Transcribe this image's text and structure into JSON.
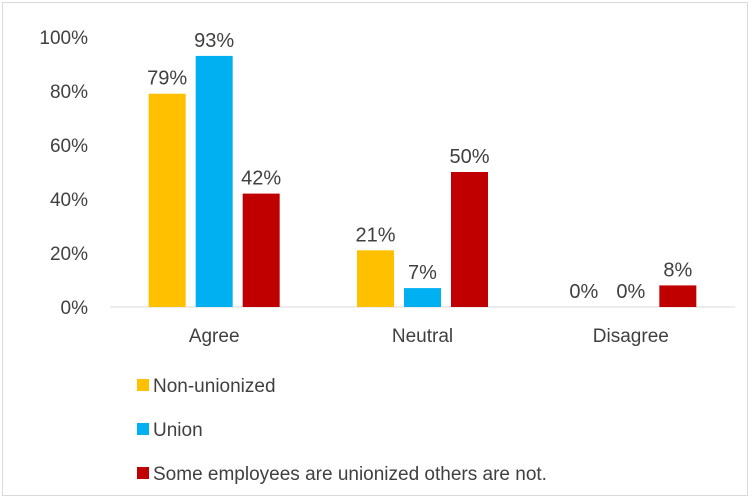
{
  "chart_data": {
    "type": "bar",
    "categories": [
      "Agree",
      "Neutral",
      "Disagree"
    ],
    "series": [
      {
        "name": "Non-unionized",
        "values": [
          79,
          21,
          0
        ],
        "labels": [
          "79%",
          "21%",
          "0%"
        ],
        "color": "#FFC000"
      },
      {
        "name": "Union",
        "values": [
          93,
          7,
          0
        ],
        "labels": [
          "93%",
          "7%",
          "0%"
        ],
        "color": "#00B0F0"
      },
      {
        "name": "Some employees are unionized others are not.",
        "values": [
          42,
          50,
          8
        ],
        "labels": [
          "42%",
          "50%",
          "8%"
        ],
        "color": "#C00000"
      }
    ],
    "ylim": [
      0,
      100
    ],
    "yticks": [
      "0%",
      "20%",
      "40%",
      "60%",
      "80%",
      "100%"
    ],
    "grid": false,
    "legend_position": "bottom"
  }
}
